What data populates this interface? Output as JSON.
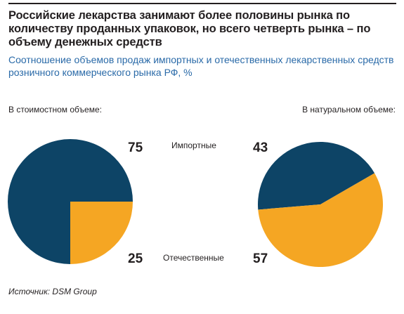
{
  "header": {
    "title": "Российские лекарства занимают более половины рынка по количеству проданных упаковок, но всего четверть рынка – по объему денежных средств",
    "subtitle": "Соотношение объемов продаж импортных и отечественных лекарственных средств розничного коммерческого рынка РФ, %"
  },
  "left_pie_title": "В стоимостном объеме:",
  "right_pie_title": "В натуральном объеме:",
  "legend": {
    "imported": "Импортные",
    "domestic": "Отечественные"
  },
  "left_labels": {
    "imported": "75",
    "domestic": "25"
  },
  "right_labels": {
    "imported": "43",
    "domestic": "57"
  },
  "source": "Источник: DSM Group",
  "colors": {
    "imported": "#0d4466",
    "domestic": "#f5a623",
    "subtitle": "#2a6aa8"
  },
  "chart_data": [
    {
      "type": "pie",
      "title": "В стоимостном объеме:",
      "slices": [
        {
          "name": "Импортные",
          "value": 75
        },
        {
          "name": "Отечественные",
          "value": 25
        }
      ]
    },
    {
      "type": "pie",
      "title": "В натуральном объеме:",
      "slices": [
        {
          "name": "Импортные",
          "value": 43
        },
        {
          "name": "Отечественные",
          "value": 57
        }
      ]
    }
  ]
}
